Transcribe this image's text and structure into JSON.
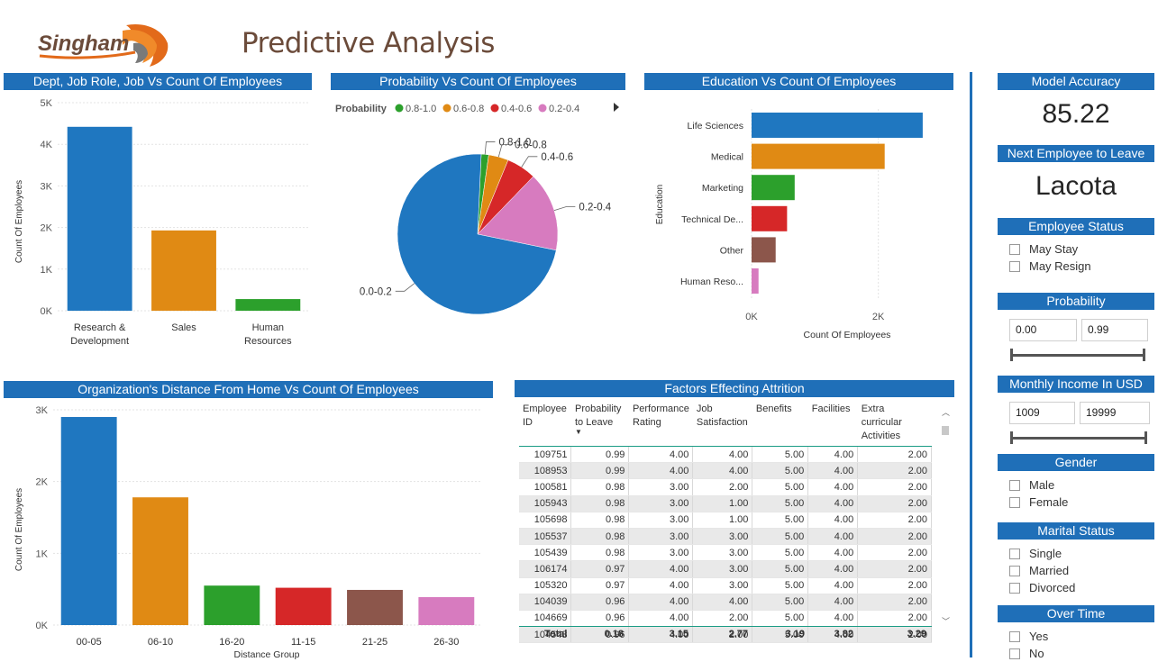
{
  "header": {
    "brand": "Singham",
    "title": "Predictive Analysis"
  },
  "panels": {
    "dept": {
      "title": "Dept, Job Role, Job Vs Count Of Employees",
      "ylabel": "Count Of Employees"
    },
    "probability_chart": {
      "title": "Probability Vs Count Of Employees",
      "legend_title": "Probability"
    },
    "education": {
      "title": "Education Vs Count Of Employees",
      "ylabel": "Education",
      "xlabel": "Count Of Employees"
    },
    "distance": {
      "title": "Organization's Distance From Home Vs Count Of Employees",
      "ylabel": "Count Of Employees",
      "xlabel": "Distance Group"
    },
    "factors": {
      "title": "Factors Effecting Attrition",
      "columns": [
        "Employee ID",
        "Probability to Leave",
        "Performance Rating",
        "Job Satisfaction",
        "Benefits",
        "Facilities",
        "Extra curricular Activities"
      ],
      "rows": [
        [
          "109751",
          "0.99",
          "4.00",
          "4.00",
          "5.00",
          "4.00",
          "2.00"
        ],
        [
          "108953",
          "0.99",
          "4.00",
          "4.00",
          "5.00",
          "4.00",
          "2.00"
        ],
        [
          "100581",
          "0.98",
          "3.00",
          "2.00",
          "5.00",
          "4.00",
          "2.00"
        ],
        [
          "105943",
          "0.98",
          "3.00",
          "1.00",
          "5.00",
          "4.00",
          "2.00"
        ],
        [
          "105698",
          "0.98",
          "3.00",
          "1.00",
          "5.00",
          "4.00",
          "2.00"
        ],
        [
          "105537",
          "0.98",
          "3.00",
          "3.00",
          "5.00",
          "4.00",
          "2.00"
        ],
        [
          "105439",
          "0.98",
          "3.00",
          "3.00",
          "5.00",
          "4.00",
          "2.00"
        ],
        [
          "106174",
          "0.97",
          "4.00",
          "3.00",
          "5.00",
          "4.00",
          "2.00"
        ],
        [
          "105320",
          "0.97",
          "4.00",
          "3.00",
          "5.00",
          "4.00",
          "2.00"
        ],
        [
          "104039",
          "0.96",
          "4.00",
          "4.00",
          "5.00",
          "4.00",
          "2.00"
        ],
        [
          "104669",
          "0.96",
          "4.00",
          "2.00",
          "5.00",
          "4.00",
          "2.00"
        ],
        [
          "104543",
          "0.96",
          "4.00",
          "2.00",
          "5.00",
          "4.00",
          "2.00"
        ]
      ],
      "total": [
        "Total",
        "0.18",
        "3.15",
        "2.77",
        "3.19",
        "3.82",
        "3.29"
      ]
    }
  },
  "sidebar": {
    "model_accuracy": {
      "title": "Model Accuracy",
      "value": "85.22"
    },
    "next_leave": {
      "title": "Next Employee to Leave",
      "value": "Lacota"
    },
    "employee_status": {
      "title": "Employee Status",
      "options": [
        "May Stay",
        "May Resign"
      ]
    },
    "probability": {
      "title": "Probability",
      "min": "0.00",
      "max": "0.99"
    },
    "income": {
      "title": "Monthly Income In USD",
      "min": "1009",
      "max": "19999"
    },
    "gender": {
      "title": "Gender",
      "options": [
        "Male",
        "Female"
      ]
    },
    "marital": {
      "title": "Marital Status",
      "options": [
        "Single",
        "Married",
        "Divorced"
      ]
    },
    "overtime": {
      "title": "Over Time",
      "options": [
        "Yes",
        "No"
      ]
    }
  },
  "colors": {
    "header_bar": "#1f6fb8",
    "blue": "#1f77c0",
    "orange": "#e08a14",
    "green": "#2ca02c",
    "red": "#d62728",
    "brown": "#8c564b",
    "pink": "#d77bbf",
    "title_brown": "#6b4b3a"
  },
  "chart_data": [
    {
      "type": "bar",
      "title": "Dept, Job Role, Job Vs Count Of Employees",
      "categories": [
        "Research & Development",
        "Sales",
        "Human Resources"
      ],
      "category_lines": [
        [
          "Research &",
          "Development"
        ],
        [
          "Sales"
        ],
        [
          "Human",
          "Resources"
        ]
      ],
      "values": [
        4420,
        1930,
        280
      ],
      "colors": [
        "#1f77c0",
        "#e08a14",
        "#2ca02c"
      ],
      "ylabel": "Count Of Employees",
      "ylim": [
        0,
        5000
      ],
      "yticks": [
        0,
        1000,
        2000,
        3000,
        4000,
        5000
      ],
      "ytick_labels": [
        "0K",
        "1K",
        "2K",
        "3K",
        "4K",
        "5K"
      ],
      "grid": true
    },
    {
      "type": "pie",
      "title": "Probability Vs Count Of Employees",
      "legend_title": "Probability",
      "legend": [
        "0.8-1.0",
        "0.6-0.8",
        "0.4-0.6",
        "0.2-0.4"
      ],
      "slices": [
        {
          "label": "0.8-1.0",
          "value": 1.5,
          "color": "#2ca02c"
        },
        {
          "label": "0.6-0.8",
          "value": 4.0,
          "color": "#e08a14"
        },
        {
          "label": "0.4-0.6",
          "value": 6.0,
          "color": "#d62728"
        },
        {
          "label": "0.2-0.4",
          "value": 16.0,
          "color": "#d77bbf"
        },
        {
          "label": "0.0-0.2",
          "value": 72.5,
          "color": "#1f77c0"
        }
      ]
    },
    {
      "type": "bar",
      "orientation": "horizontal",
      "title": "Education Vs Count Of Employees",
      "categories": [
        "Life Sciences",
        "Medical",
        "Marketing",
        "Technical De...",
        "Other",
        "Human Reso..."
      ],
      "values": [
        2700,
        2100,
        680,
        560,
        380,
        110
      ],
      "colors": [
        "#1f77c0",
        "#e08a14",
        "#2ca02c",
        "#d62728",
        "#8c564b",
        "#d77bbf"
      ],
      "xlabel": "Count Of Employees",
      "ylabel": "Education",
      "xlim": [
        0,
        3000
      ],
      "xticks": [
        0,
        2000
      ],
      "xtick_labels": [
        "0K",
        "2K"
      ]
    },
    {
      "type": "bar",
      "title": "Organization's Distance From Home Vs Count Of Employees",
      "categories": [
        "00-05",
        "06-10",
        "16-20",
        "11-15",
        "21-25",
        "26-30"
      ],
      "values": [
        2900,
        1780,
        550,
        520,
        490,
        390
      ],
      "colors": [
        "#1f77c0",
        "#e08a14",
        "#2ca02c",
        "#d62728",
        "#8c564b",
        "#d77bbf"
      ],
      "xlabel": "Distance Group",
      "ylabel": "Count Of Employees",
      "ylim": [
        0,
        3000
      ],
      "yticks": [
        0,
        1000,
        2000,
        3000
      ],
      "ytick_labels": [
        "0K",
        "1K",
        "2K",
        "3K"
      ],
      "grid": true
    }
  ]
}
